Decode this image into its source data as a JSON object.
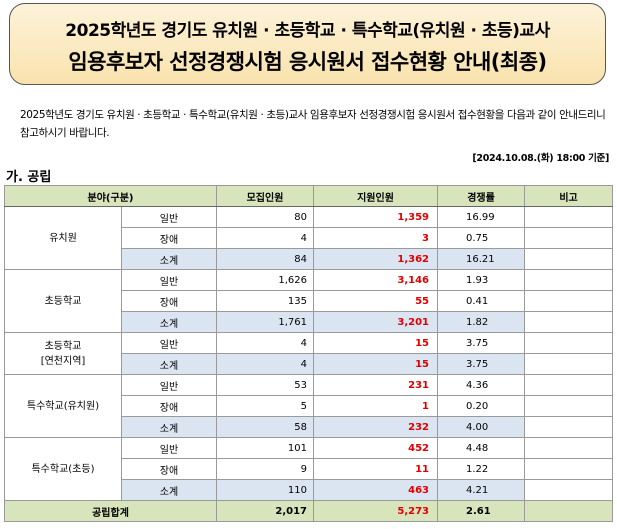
{
  "banner": {
    "line1": "2025학년도 경기도 유치원 · 초등학교 · 특수학교(유치원 · 초등)교사",
    "line2": "임용후보자 선정경쟁시험 응시원서 접수현황 안내(최종)"
  },
  "intro": "2025학년도 경기도 유치원 · 초등학교 · 특수학교(유치원 · 초등)교사 임용후보자 선정경쟁시험 응시원서 접수현황을 다음과 같이 안내드리니 참고하시기 바랍니다.",
  "timestamp": "[2024.10.08.(화) 18:00 기준]",
  "section_title": "가. 공립",
  "table": {
    "headers": {
      "category": "분야(구분)",
      "quota": "모집인원",
      "applicants": "지원인원",
      "ratio": "경쟁률",
      "note": "비고"
    },
    "groups": [
      {
        "name": "유치원",
        "rows": [
          {
            "sub": "일반",
            "quota": "80",
            "applicants": "1,359",
            "ratio": "16.99"
          },
          {
            "sub": "장애",
            "quota": "4",
            "applicants": "3",
            "ratio": "0.75"
          },
          {
            "sub": "소계",
            "quota": "84",
            "applicants": "1,362",
            "ratio": "16.21"
          }
        ]
      },
      {
        "name": "초등학교",
        "rows": [
          {
            "sub": "일반",
            "quota": "1,626",
            "applicants": "3,146",
            "ratio": "1.93"
          },
          {
            "sub": "장애",
            "quota": "135",
            "applicants": "55",
            "ratio": "0.41"
          },
          {
            "sub": "소계",
            "quota": "1,761",
            "applicants": "3,201",
            "ratio": "1.82"
          }
        ]
      },
      {
        "name": "초등학교",
        "name2": "[연천지역]",
        "rows": [
          {
            "sub": "일반",
            "quota": "4",
            "applicants": "15",
            "ratio": "3.75"
          },
          {
            "sub": "소계",
            "quota": "4",
            "applicants": "15",
            "ratio": "3.75"
          }
        ]
      },
      {
        "name": "특수학교(유치원)",
        "rows": [
          {
            "sub": "일반",
            "quota": "53",
            "applicants": "231",
            "ratio": "4.36"
          },
          {
            "sub": "장애",
            "quota": "5",
            "applicants": "1",
            "ratio": "0.20"
          },
          {
            "sub": "소계",
            "quota": "58",
            "applicants": "232",
            "ratio": "4.00"
          }
        ]
      },
      {
        "name": "특수학교(초등)",
        "rows": [
          {
            "sub": "일반",
            "quota": "101",
            "applicants": "452",
            "ratio": "4.48"
          },
          {
            "sub": "장애",
            "quota": "9",
            "applicants": "11",
            "ratio": "1.22"
          },
          {
            "sub": "소계",
            "quota": "110",
            "applicants": "463",
            "ratio": "4.21"
          }
        ]
      }
    ],
    "total": {
      "label": "공립합계",
      "quota": "2,017",
      "applicants": "5,273",
      "ratio": "2.61"
    }
  },
  "colors": {
    "header_bg": "#d8e4bc",
    "subtotal_bg": "#dbe5f1",
    "applicants_text": "#e00000",
    "banner_bg": "#fbe8bd"
  }
}
